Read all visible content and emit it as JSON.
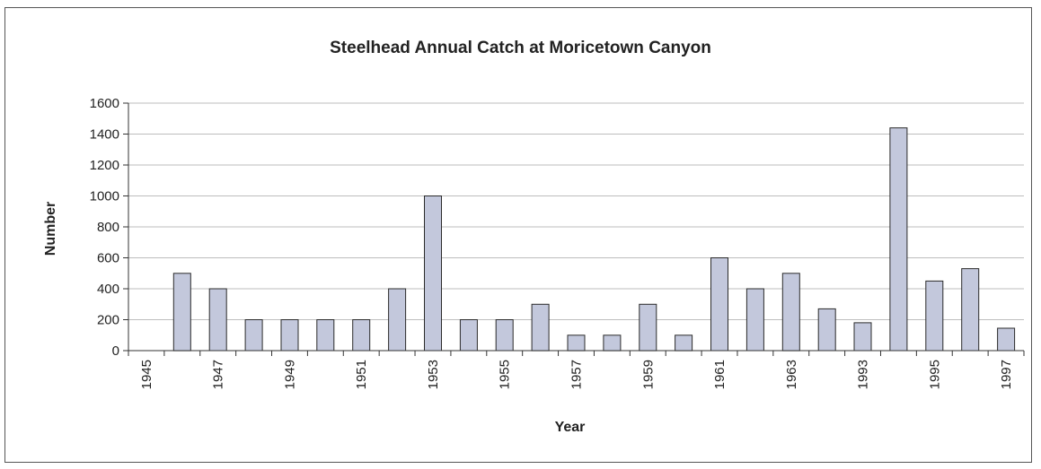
{
  "chart_data": {
    "type": "bar",
    "title": "Steelhead Annual Catch at Moricetown Canyon",
    "xlabel": "Year",
    "ylabel": "Number",
    "ylim": [
      0,
      1600
    ],
    "yticks": [
      "0",
      "200",
      "400",
      "600",
      "800",
      "1000",
      "1200",
      "1400",
      "1600"
    ],
    "grid": true,
    "categories": [
      "1945",
      "1946",
      "1947",
      "1948",
      "1949",
      "1950",
      "1951",
      "1952",
      "1953",
      "1954",
      "1955",
      "1956",
      "1957",
      "1958",
      "1959",
      "1960",
      "1961",
      "1962",
      "1963",
      "1964",
      "1993",
      "1994",
      "1995",
      "1996",
      "1997"
    ],
    "tick_labels": [
      "1945",
      "",
      "1947",
      "",
      "1949",
      "",
      "1951",
      "",
      "1953",
      "",
      "1955",
      "",
      "1957",
      "",
      "1959",
      "",
      "1961",
      "",
      "1963",
      "",
      "1993",
      "",
      "1995",
      "",
      "1997"
    ],
    "values": [
      0,
      500,
      400,
      200,
      200,
      200,
      200,
      400,
      1000,
      200,
      200,
      300,
      100,
      100,
      300,
      100,
      600,
      400,
      500,
      270,
      180,
      1440,
      450,
      530,
      145
    ],
    "colors": {
      "bar_fill": "#c3c8dc",
      "bar_stroke": "#2b2b2b",
      "grid": "#bdbdbd",
      "axis": "#333333"
    }
  }
}
